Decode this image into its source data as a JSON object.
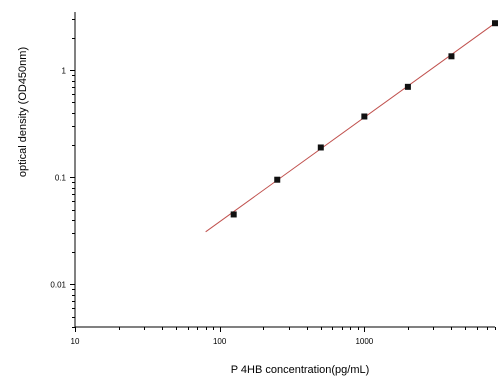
{
  "chart_data": {
    "type": "scatter",
    "title": "",
    "xlabel": "P 4HB concentration(pg/mL)",
    "ylabel": "optical density (OD450nm)",
    "xscale": "log",
    "yscale": "log",
    "xlim": [
      10,
      8000
    ],
    "ylim": [
      0.004,
      3.5
    ],
    "x_ticks": [
      10,
      100,
      1000
    ],
    "x_tick_labels": [
      "10",
      "100",
      "1000"
    ],
    "y_ticks": [
      0.01,
      0.1,
      1
    ],
    "y_tick_labels": [
      "0.01",
      "0.1",
      "1"
    ],
    "grid": false,
    "legend": "none",
    "series": [
      {
        "x": [
          125,
          250,
          500,
          1000,
          2000,
          4000,
          8000
        ],
        "y": [
          0.045,
          0.095,
          0.19,
          0.37,
          0.7,
          1.35,
          2.75
        ]
      }
    ],
    "fit_line": {
      "x": [
        80,
        8000
      ],
      "y": [
        0.031,
        2.75
      ],
      "color": "#c0504d"
    },
    "marker_color": "#111111"
  }
}
